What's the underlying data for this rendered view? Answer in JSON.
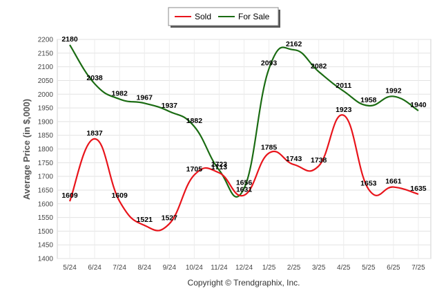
{
  "chart_data": {
    "type": "line",
    "categories": [
      "5/24",
      "6/24",
      "7/24",
      "8/24",
      "9/24",
      "10/24",
      "11/24",
      "12/24",
      "1/25",
      "2/25",
      "3/25",
      "4/25",
      "5/25",
      "6/25",
      "7/25"
    ],
    "series": [
      {
        "name": "Sold",
        "color": "#e8141b",
        "values": [
          1609,
          1837,
          1609,
          1521,
          1527,
          1705,
          1713,
          1631,
          1785,
          1743,
          1738,
          1923,
          1653,
          1661,
          1635
        ]
      },
      {
        "name": "For Sale",
        "color": "#1a6b12",
        "values": [
          2180,
          2038,
          1982,
          1967,
          1937,
          1882,
          1723,
          1656,
          2093,
          2162,
          2082,
          2011,
          1958,
          1992,
          1940
        ]
      }
    ],
    "ylabel": "Average Price (in $,000)",
    "xlabel": "",
    "ylim": [
      1400,
      2200
    ],
    "yticks": [
      1400,
      1450,
      1500,
      1550,
      1600,
      1650,
      1700,
      1750,
      1800,
      1850,
      1900,
      1950,
      2000,
      2050,
      2100,
      2150,
      2200
    ],
    "legend_position": "top-center",
    "grid": true
  },
  "footer": "Copyright © Trendgraphix, Inc."
}
